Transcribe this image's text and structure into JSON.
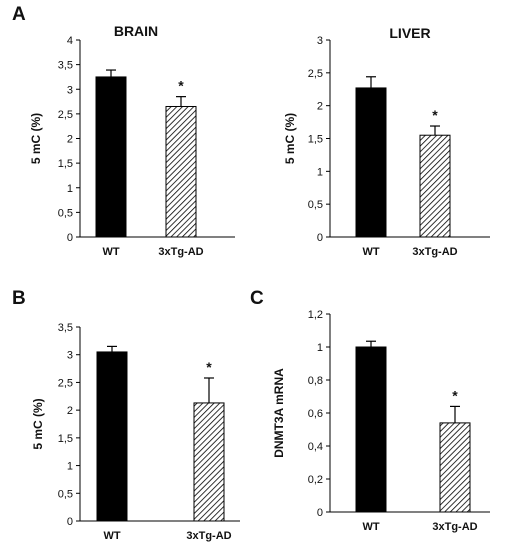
{
  "panels": {
    "A": "A",
    "B": "B",
    "C": "C"
  },
  "colors": {
    "bar_solid": "#000000",
    "bar_hatch": "#000000",
    "axis": "#000000"
  },
  "chart_data": [
    {
      "id": "brain",
      "type": "bar",
      "title": "BRAIN",
      "ylabel": "5 mC (%)",
      "categories": [
        "WT",
        "3xTg-AD"
      ],
      "values": [
        3.25,
        2.65
      ],
      "errors": [
        0.14,
        0.2
      ],
      "significance": [
        "",
        "*"
      ],
      "ylim": [
        0,
        4
      ],
      "yticks": [
        "0",
        "0,5",
        "1",
        "1,5",
        "2",
        "2,5",
        "3",
        "3,5",
        "4"
      ],
      "ytick_values": [
        0,
        0.5,
        1,
        1.5,
        2,
        2.5,
        3,
        3.5,
        4
      ],
      "fills": [
        "solid",
        "hatch"
      ],
      "grid": false
    },
    {
      "id": "liver",
      "type": "bar",
      "title": "LIVER",
      "ylabel": "5 mC (%)",
      "categories": [
        "WT",
        "3xTg-AD"
      ],
      "values": [
        2.27,
        1.55
      ],
      "errors": [
        0.17,
        0.14
      ],
      "significance": [
        "",
        "*"
      ],
      "ylim": [
        0,
        3
      ],
      "yticks": [
        "0",
        "0,5",
        "1",
        "1,5",
        "2",
        "2,5",
        "3"
      ],
      "ytick_values": [
        0,
        0.5,
        1,
        1.5,
        2,
        2.5,
        3
      ],
      "fills": [
        "solid",
        "hatch"
      ],
      "grid": false
    },
    {
      "id": "blood",
      "type": "bar",
      "title": "",
      "ylabel": "5 mC (%)",
      "categories": [
        "WT",
        "3xTg-AD"
      ],
      "values": [
        3.05,
        2.13
      ],
      "errors": [
        0.1,
        0.45
      ],
      "significance": [
        "",
        "*"
      ],
      "ylim": [
        0,
        3.5
      ],
      "yticks": [
        "0",
        "0,5",
        "1",
        "1,5",
        "2",
        "2,5",
        "3",
        "3,5"
      ],
      "ytick_values": [
        0,
        0.5,
        1,
        1.5,
        2,
        2.5,
        3,
        3.5
      ],
      "fills": [
        "solid",
        "hatch"
      ],
      "grid": false
    },
    {
      "id": "dnmt3a",
      "type": "bar",
      "title": "",
      "ylabel": "DNMT3A mRNA",
      "categories": [
        "WT",
        "3xTg-AD"
      ],
      "values": [
        1.0,
        0.54
      ],
      "errors": [
        0.035,
        0.1
      ],
      "significance": [
        "",
        "*"
      ],
      "ylim": [
        0,
        1.2
      ],
      "yticks": [
        "0",
        "0,2",
        "0,4",
        "0,6",
        "0,8",
        "1",
        "1,2"
      ],
      "ytick_values": [
        0,
        0.2,
        0.4,
        0.6,
        0.8,
        1.0,
        1.2
      ],
      "fills": [
        "solid",
        "hatch"
      ],
      "grid": false
    }
  ]
}
